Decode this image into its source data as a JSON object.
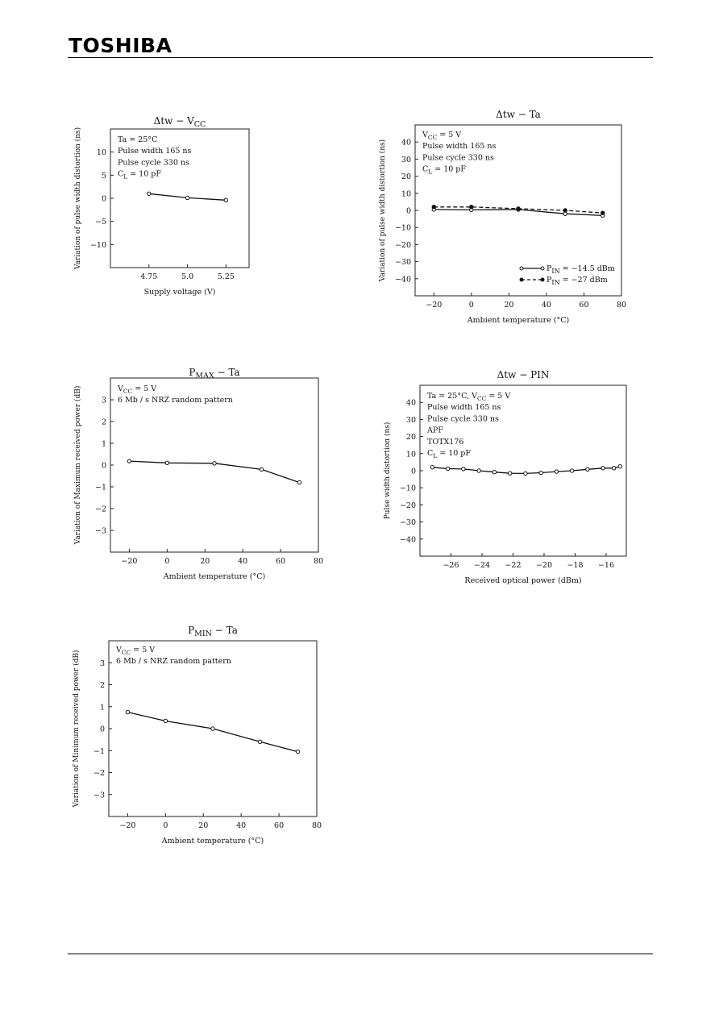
{
  "header": {
    "logo": "TOSHIBA"
  },
  "chart_data": [
    {
      "type": "line",
      "title_main": "Δtw",
      "title_sep": "−",
      "title_var": "V",
      "title_var_sub": "CC",
      "notes": [
        {
          "text": "Ta = 25°C"
        },
        {
          "text": "Pulse width 165 ns"
        },
        {
          "text": "Pulse cycle 330 ns"
        },
        {
          "text": "C",
          "sub": "L",
          "rest": " = 10 pF"
        }
      ],
      "xlabel": "Supply voltage   (V)",
      "ylabel": "Variation of pulse width distortion   (ns)",
      "xlim": [
        4.5,
        5.4
      ],
      "ylim": [
        -15,
        15
      ],
      "xticks": [
        4.75,
        5.0,
        5.25
      ],
      "xtick_labels": [
        "4.75",
        "5.0",
        "5.25"
      ],
      "yticks": [
        10,
        5,
        0,
        -5,
        -10
      ],
      "ytick_labels": [
        "10",
        "5",
        "0",
        "−5",
        "−10"
      ],
      "series": [
        {
          "x": [
            4.75,
            5.0,
            5.25
          ],
          "y": [
            1.0,
            0.1,
            -0.4
          ]
        }
      ]
    },
    {
      "type": "line",
      "title_main": "Δtw",
      "title_sep": "−",
      "title_var": "Ta",
      "notes": [
        {
          "text": "V",
          "sub": "CC",
          "rest": " = 5 V"
        },
        {
          "text": "Pulse width 165 ns"
        },
        {
          "text": "Pulse cycle 330 ns"
        },
        {
          "text": "C",
          "sub": "L",
          "rest": " = 10 pF"
        }
      ],
      "xlabel": "Ambient temperature   (°C)",
      "ylabel": "Variation of pulse width distortion   (ns)",
      "xlim": [
        -30,
        80
      ],
      "ylim": [
        -50,
        50
      ],
      "xticks": [
        -20,
        0,
        20,
        40,
        60,
        80
      ],
      "xtick_labels": [
        "−20",
        "0",
        "20",
        "40",
        "60",
        "80"
      ],
      "yticks": [
        40,
        30,
        20,
        10,
        0,
        -10,
        -20,
        -30,
        -40
      ],
      "ytick_labels": [
        "40",
        "30",
        "20",
        "10",
        "0",
        "−10",
        "−20",
        "−30",
        "−40"
      ],
      "legend": [
        {
          "label_pre": "P",
          "label_sub": "IN",
          "label_post": " = −14.5 dBm"
        },
        {
          "label_pre": "P",
          "label_sub": "IN",
          "label_post": " = −27 dBm"
        }
      ],
      "series": [
        {
          "x": [
            -20,
            0,
            25,
            50,
            70
          ],
          "y": [
            0.5,
            0.3,
            0.5,
            -2.0,
            -3.0
          ]
        },
        {
          "x": [
            -20,
            0,
            25,
            50,
            70
          ],
          "y": [
            2.0,
            2.0,
            1.0,
            0.0,
            -1.5
          ]
        }
      ]
    },
    {
      "type": "line",
      "title_main": "P",
      "title_main_sub": "MAX",
      "title_sep": "−",
      "title_var": "Ta",
      "notes": [
        {
          "text": "V",
          "sub": "CC",
          "rest": " = 5 V"
        },
        {
          "text": "6 Mb / s  NRZ random pattern"
        }
      ],
      "xlabel": "Ambient temperature   (°C)",
      "ylabel": "Variation of Maximum received power   (dB)",
      "xlim": [
        -30,
        80
      ],
      "ylim": [
        -4,
        4
      ],
      "xticks": [
        -20,
        0,
        20,
        40,
        60,
        80
      ],
      "xtick_labels": [
        "−20",
        "0",
        "20",
        "40",
        "60",
        "80"
      ],
      "yticks": [
        3,
        2,
        1,
        0,
        -1,
        -2,
        -3
      ],
      "ytick_labels": [
        "3",
        "2",
        "1",
        "0",
        "−1",
        "−2",
        "−3"
      ],
      "series": [
        {
          "x": [
            -20,
            0,
            25,
            50,
            70
          ],
          "y": [
            0.18,
            0.1,
            0.08,
            -0.2,
            -0.8
          ]
        }
      ]
    },
    {
      "type": "line",
      "title_main": "Δtw",
      "title_sep": "−",
      "title_var": "PIN",
      "notes": [
        {
          "text": "Ta = 25°C,  V",
          "sub": "CC",
          "rest": " = 5 V"
        },
        {
          "text": "Pulse width 165 ns"
        },
        {
          "text": "Pulse cycle 330 ns"
        },
        {
          "text": "APF"
        },
        {
          "text": "TOTX176"
        },
        {
          "text": "C",
          "sub": "L",
          "rest": " = 10 pF"
        }
      ],
      "xlabel": "Received optical power   (dBm)",
      "ylabel": "Pulse width distortion   (ns)",
      "xlim": [
        -28,
        -14.7
      ],
      "ylim": [
        -50,
        50
      ],
      "xticks": [
        -26,
        -24,
        -22,
        -20,
        -18,
        -16
      ],
      "xtick_labels": [
        "−26",
        "−24",
        "−22",
        "−20",
        "−18",
        "−16"
      ],
      "yticks": [
        40,
        30,
        20,
        10,
        0,
        -10,
        -20,
        -30,
        -40
      ],
      "ytick_labels": [
        "40",
        "30",
        "20",
        "10",
        "0",
        "−10",
        "−20",
        "−30",
        "−40"
      ],
      "series": [
        {
          "x": [
            -27.2,
            -26.2,
            -25.2,
            -24.2,
            -23.2,
            -22.2,
            -21.2,
            -20.2,
            -19.2,
            -18.2,
            -17.2,
            -16.2,
            -15.5,
            -15.1
          ],
          "y": [
            2.0,
            1.2,
            1.0,
            0.0,
            -0.8,
            -1.5,
            -1.6,
            -1.2,
            -0.5,
            0.0,
            0.8,
            1.5,
            1.5,
            2.5
          ]
        }
      ]
    },
    {
      "type": "line",
      "title_main": "P",
      "title_main_sub": "MIN",
      "title_sep": "−",
      "title_var": "Ta",
      "notes": [
        {
          "text": "V",
          "sub": "CC",
          "rest": " = 5 V"
        },
        {
          "text": "6 Mb / s  NRZ random pattern"
        }
      ],
      "xlabel": "Ambient  temperature   (°C)",
      "ylabel": "Variation of Minimum received power   (dB)",
      "xlim": [
        -30,
        80
      ],
      "ylim": [
        -4,
        4
      ],
      "xticks": [
        -20,
        0,
        20,
        40,
        60,
        80
      ],
      "xtick_labels": [
        "−20",
        "0",
        "20",
        "40",
        "60",
        "80"
      ],
      "yticks": [
        3,
        2,
        1,
        0,
        -1,
        -2,
        -3
      ],
      "ytick_labels": [
        "3",
        "2",
        "1",
        "0",
        "−1",
        "−2",
        "−3"
      ],
      "series": [
        {
          "x": [
            -20,
            0,
            25,
            50,
            70
          ],
          "y": [
            0.75,
            0.35,
            0.0,
            -0.6,
            -1.05
          ]
        }
      ]
    }
  ]
}
